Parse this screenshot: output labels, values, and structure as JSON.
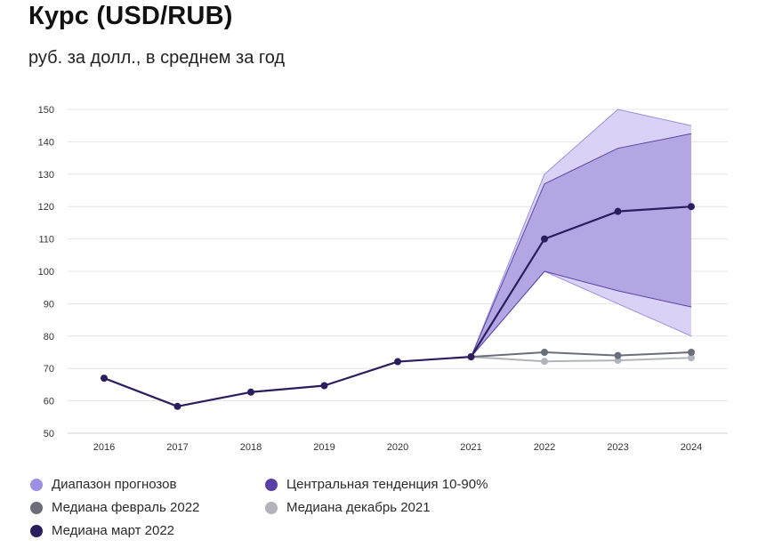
{
  "header": {
    "title": "Курс (USD/RUB)",
    "subtitle": "руб. за долл., в среднем за год"
  },
  "colors": {
    "range_fill": "#d9d2f6",
    "range_stroke": "#9b8ddf",
    "central_fill": "#ad9fde",
    "central_stroke": "#5a43a8",
    "median_feb": "#6b6e78",
    "median_dec": "#b1b4bb",
    "median_mar": "#2c1d5e",
    "grid": "#e4e4e4",
    "axis_text": "#333333"
  },
  "chart_data": {
    "type": "line",
    "x": [
      2016,
      2017,
      2018,
      2019,
      2020,
      2021,
      2022,
      2023,
      2024
    ],
    "ylim": [
      50,
      150
    ],
    "yticks": [
      50,
      60,
      70,
      80,
      90,
      100,
      110,
      120,
      130,
      140,
      150
    ],
    "grid": true,
    "legend_position": "bottom",
    "bands": [
      {
        "name": "Диапазон прогнозов",
        "x": [
          2021,
          2022,
          2023,
          2024
        ],
        "low": [
          73.6,
          100,
          90,
          80
        ],
        "high": [
          73.6,
          130,
          150,
          145
        ]
      },
      {
        "name": "Центральная тенденция 10-90%",
        "x": [
          2021,
          2022,
          2023,
          2024
        ],
        "low": [
          73.6,
          100,
          94,
          89
        ],
        "high": [
          73.6,
          127,
          138,
          142.5
        ]
      }
    ],
    "series": [
      {
        "name": "Медиана декабрь 2021",
        "x": [
          2021,
          2022,
          2023,
          2024
        ],
        "values": [
          73.6,
          72.2,
          72.5,
          73.3
        ]
      },
      {
        "name": "Медиана февраль 2022",
        "x": [
          2021,
          2022,
          2023,
          2024
        ],
        "values": [
          73.6,
          75.0,
          74.0,
          75.0
        ]
      },
      {
        "name": "Медиана март 2022",
        "x": [
          2016,
          2017,
          2018,
          2019,
          2020,
          2021,
          2022,
          2023,
          2024
        ],
        "values": [
          67.0,
          58.3,
          62.7,
          64.7,
          72.1,
          73.6,
          110.0,
          118.5,
          120.0
        ]
      }
    ]
  },
  "legend": [
    {
      "label": "Диапазон прогнозов",
      "color": "#9d8fe3"
    },
    {
      "label": "Центральная тенденция 10-90%",
      "color": "#5b3fa6"
    },
    {
      "label": "Медиана февраль 2022",
      "color": "#6b6e78"
    },
    {
      "label": "Медиана декабрь 2021",
      "color": "#b1b4bb"
    },
    {
      "label": "Медиана март 2022",
      "color": "#2c1d5e"
    }
  ]
}
